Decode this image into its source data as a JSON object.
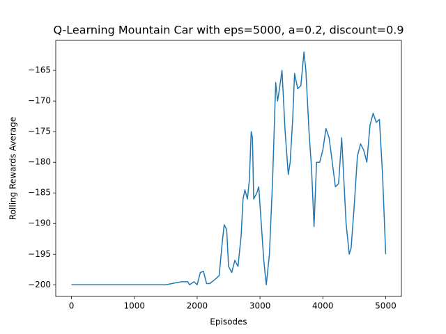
{
  "chart_data": {
    "type": "line",
    "title": "Q-Learning Mountain Car with eps=5000, a=0.2, discount=0.9",
    "xlabel": "Episodes",
    "ylabel": "Rolling Rewards Average",
    "color": "#1f77b4",
    "x": [
      0,
      500,
      1000,
      1500,
      1750,
      1850,
      1880,
      1950,
      2000,
      2050,
      2100,
      2150,
      2200,
      2300,
      2350,
      2400,
      2430,
      2470,
      2500,
      2550,
      2600,
      2650,
      2700,
      2730,
      2760,
      2800,
      2830,
      2860,
      2880,
      2900,
      2950,
      2980,
      3020,
      3060,
      3100,
      3150,
      3200,
      3250,
      3280,
      3310,
      3350,
      3400,
      3450,
      3480,
      3520,
      3550,
      3600,
      3650,
      3700,
      3730,
      3780,
      3820,
      3860,
      3900,
      3950,
      4000,
      4050,
      4100,
      4150,
      4200,
      4250,
      4300,
      4330,
      4370,
      4420,
      4450,
      4500,
      4550,
      4600,
      4650,
      4700,
      4750,
      4800,
      4850,
      4900,
      4950,
      5000
    ],
    "values": [
      -200,
      -200,
      -200,
      -200,
      -199.5,
      -199.5,
      -200,
      -199.5,
      -200,
      -198,
      -197.8,
      -199.8,
      -199.8,
      -199,
      -198.5,
      -193,
      -190.2,
      -191,
      -197,
      -198,
      -196,
      -197,
      -192,
      -186,
      -184.5,
      -186,
      -183,
      -175,
      -176,
      -186,
      -185,
      -184,
      -190,
      -196,
      -200,
      -195,
      -183,
      -167,
      -170,
      -168,
      -165,
      -175,
      -182,
      -180,
      -173,
      -165.5,
      -168,
      -167.5,
      -162,
      -165,
      -175,
      -181,
      -190.5,
      -180,
      -180,
      -178,
      -174.5,
      -176,
      -180,
      -184,
      -183.5,
      -176,
      -182,
      -190,
      -195,
      -194,
      -187,
      -179,
      -177,
      -178,
      -180,
      -174,
      -172,
      -173.5,
      -173,
      -182,
      -195
    ],
    "xlim": [
      -250,
      5250
    ],
    "ylim": [
      -201.9,
      -160.1
    ],
    "xticks": [
      0,
      1000,
      2000,
      3000,
      4000,
      5000
    ],
    "yticks": [
      {
        "value": -200,
        "label": "−200"
      },
      {
        "value": -195,
        "label": "−195"
      },
      {
        "value": -190,
        "label": "−190"
      },
      {
        "value": -185,
        "label": "−185"
      },
      {
        "value": -180,
        "label": "−180"
      },
      {
        "value": -175,
        "label": "−175"
      },
      {
        "value": -170,
        "label": "−170"
      },
      {
        "value": -165,
        "label": "−165"
      }
    ]
  }
}
